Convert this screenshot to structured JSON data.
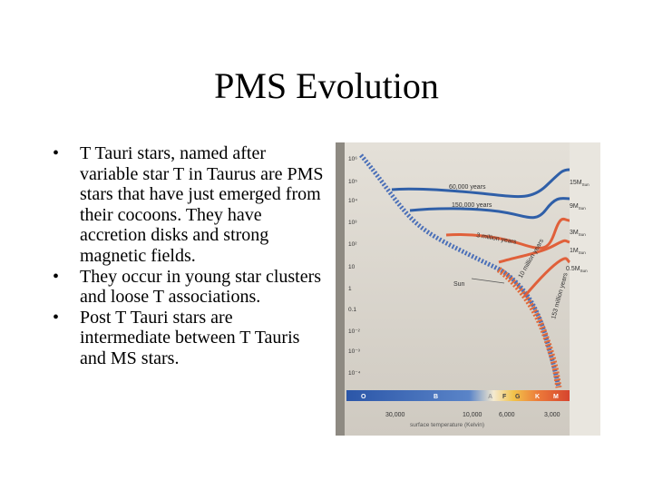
{
  "slide": {
    "title": "PMS Evolution",
    "bullets": [
      "T Tauri stars, named after variable star T in Taurus are PMS stars that have just emerged from their cocoons. They have accretion disks and strong magnetic fields.",
      "They occur in young star clusters and loose T associations.",
      "Post T Tauri stars are intermediate between T Tauris and MS stars."
    ],
    "bullet_symbol": "•"
  },
  "figure": {
    "y_ticks": [
      "10⁶",
      "10⁵",
      "10⁴",
      "10³",
      "10²",
      "10",
      "1",
      "0.1",
      "10⁻²",
      "10⁻³",
      "10⁻⁴"
    ],
    "track_labels": [
      "15M",
      "9M",
      "3M",
      "1M",
      "0.5M"
    ],
    "track_label_subscript": "Sun",
    "time_labels": [
      "60,000 years",
      "150,000 years",
      "3 million years",
      "10 million years",
      "153 million years"
    ],
    "sun_label": "Sun",
    "spectral_classes": [
      "O",
      "B",
      "A",
      "F",
      "G",
      "K",
      "M"
    ],
    "x_ticks": [
      "30,000",
      "10,000",
      "6,000",
      "3,000"
    ],
    "xlabel": "surface temperature (Kelvin)",
    "colors": {
      "background": "#d8d4cc",
      "main_sequence": "#4a6fb8",
      "tracks_blue": "#2f5fa8",
      "tracks_orange": "#e0603a",
      "spectral_bar": "#2e5fb0"
    }
  }
}
